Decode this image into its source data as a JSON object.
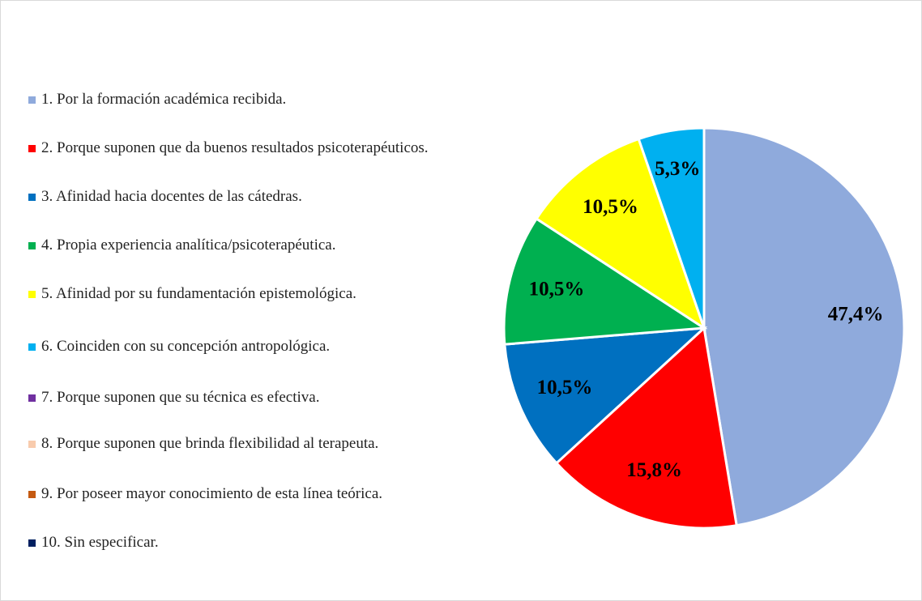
{
  "chart_data": {
    "type": "pie",
    "categories": [
      "1. Por la formación académica recibida.",
      "2. Porque suponen que da buenos resultados psicoterapéuticos.",
      "3. Afinidad hacia docentes de las cátedras.",
      "4. Propia experiencia analítica/psicoterapéutica.",
      "5. Afinidad por su fundamentación epistemológica.",
      "6. Coinciden con su concepción antropológica.",
      "7. Porque suponen que su técnica es efectiva.",
      "8. Porque suponen que brinda flexibilidad al terapeuta.",
      "9. Por poseer mayor conocimiento de esta línea teórica.",
      "10. Sin especificar."
    ],
    "values": [
      47.4,
      15.8,
      10.5,
      10.5,
      10.5,
      5.3,
      0,
      0,
      0,
      0
    ],
    "value_labels": [
      "47,4%",
      "15,8%",
      "10,5%",
      "10,5%",
      "10,5%",
      "5,3%",
      null,
      null,
      null,
      null
    ],
    "colors": [
      "#8faadc",
      "#ff0000",
      "#0070c0",
      "#00b050",
      "#ffff00",
      "#00b0f0",
      "#7030a0",
      "#f8cbad",
      "#c55a11",
      "#002060"
    ],
    "legend": "left"
  }
}
